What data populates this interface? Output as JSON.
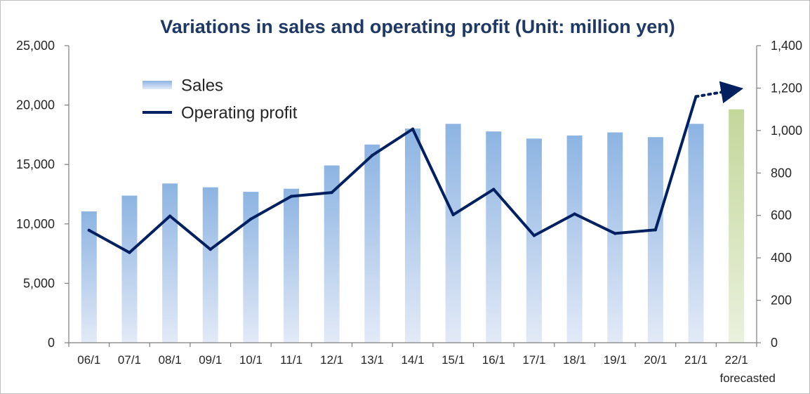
{
  "chart_data": {
    "type": "bar",
    "title": "Variations in sales and operating profit (Unit: million yen)",
    "categories": [
      "06/1",
      "07/1",
      "08/1",
      "09/1",
      "10/1",
      "11/1",
      "12/1",
      "13/1",
      "14/1",
      "15/1",
      "16/1",
      "17/1",
      "18/1",
      "19/1",
      "20/1",
      "21/1",
      "22/1"
    ],
    "category_sublabels": {
      "22/1": "forecasted"
    },
    "series": [
      {
        "name": "Sales",
        "type": "bar",
        "axis": "left",
        "values": [
          11050,
          12380,
          13400,
          13080,
          12700,
          12960,
          14920,
          16680,
          18020,
          18420,
          17780,
          17180,
          17440,
          17700,
          17300,
          18420,
          19640
        ],
        "forecast_index": 16
      },
      {
        "name": "Operating profit",
        "type": "line",
        "axis": "right",
        "values": [
          530,
          425,
          597,
          440,
          583,
          690,
          708,
          883,
          1007,
          603,
          723,
          505,
          607,
          515,
          532,
          1160,
          null
        ],
        "forecast_extension": {
          "from": "21/1",
          "value": 1195
        }
      }
    ],
    "y_left": {
      "min": 0,
      "max": 25000,
      "ticks": [
        "0",
        "5,000",
        "10,000",
        "15,000",
        "20,000",
        "25,000"
      ]
    },
    "y_right": {
      "min": 0,
      "max": 1400,
      "ticks": [
        "0",
        "200",
        "400",
        "600",
        "800",
        "1,000",
        "1,200",
        "1,400"
      ]
    },
    "grid": false,
    "legend_position": "top-left",
    "colors": {
      "sales_top": "#8db4e2",
      "sales_bottom": "#e3eaf7",
      "forecast_top": "#c4d79b",
      "forecast_bottom": "#eaf1dd",
      "profit_line": "#002060",
      "title": "#1f3864"
    }
  }
}
